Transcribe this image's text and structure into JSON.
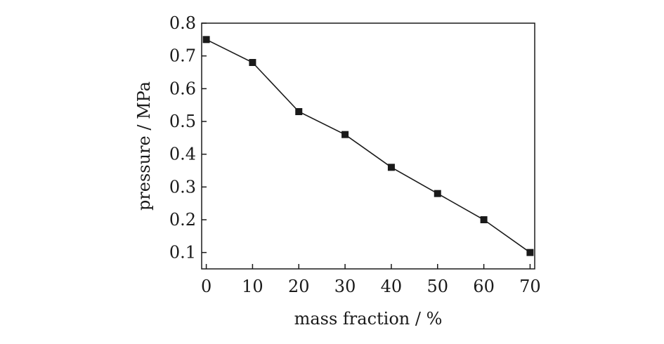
{
  "chart_data": {
    "type": "line",
    "title": "",
    "xlabel": "mass fraction / %",
    "ylabel": "pressure / MPa",
    "x": [
      0,
      10,
      20,
      30,
      40,
      50,
      60,
      70
    ],
    "series": [
      {
        "marker": "square",
        "color": "#1a1a1a",
        "values": [
          0.75,
          0.68,
          0.53,
          0.46,
          0.36,
          0.28,
          0.2,
          0.1
        ]
      }
    ],
    "xlim": [
      -1,
      71
    ],
    "ylim": [
      0.05,
      0.8
    ],
    "xticks": [
      0,
      10,
      20,
      30,
      40,
      50,
      60,
      70
    ],
    "xtick_labels": [
      "0",
      "10",
      "20",
      "30",
      "40",
      "50",
      "60",
      "70"
    ],
    "yticks": [
      0.1,
      0.2,
      0.3,
      0.4,
      0.5,
      0.6,
      0.7,
      0.8
    ],
    "ytick_labels": [
      "0.1",
      "0.2",
      "0.3",
      "0.4",
      "0.5",
      "0.6",
      "0.7",
      "0.8"
    ],
    "grid": false,
    "legend": false
  }
}
